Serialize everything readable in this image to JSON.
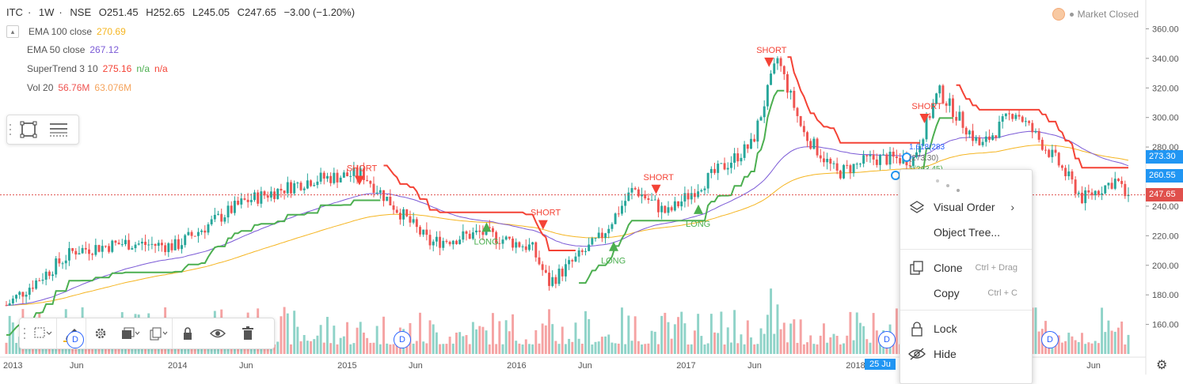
{
  "header": {
    "symbol": "ITC",
    "interval": "1W",
    "exchange": "NSE",
    "open": "O251.45",
    "high": "H252.65",
    "low": "L245.05",
    "close": "C247.65",
    "change": "−3.00 (−1.20%)"
  },
  "market_status": "Market Closed",
  "legend": {
    "ema100": {
      "label": "EMA 100 close",
      "value": "270.69",
      "color": "#f5b521"
    },
    "ema50": {
      "label": "EMA 50 close",
      "value": "267.12",
      "color": "#7b5ad6"
    },
    "supertrend": {
      "label": "SuperTrend 3 10",
      "value": "275.16",
      "v2": "n/a",
      "v3": "n/a"
    },
    "vol": {
      "label": "Vol 20",
      "value": "56.76M",
      "value2": "63.076M"
    }
  },
  "price_tags": {
    "tag1": {
      "text": "273.30",
      "color": "#2196f3"
    },
    "tag2": {
      "text": "260.55",
      "color": "#2196f3"
    },
    "tag3": {
      "text": "247.65",
      "color": "#e0504c"
    }
  },
  "context_menu": {
    "visual_order": "Visual Order",
    "object_tree": "Object Tree...",
    "clone": "Clone",
    "clone_shortcut": "Ctrl + Drag",
    "copy": "Copy",
    "copy_shortcut": "Ctrl + C",
    "lock": "Lock",
    "hide": "Hide"
  },
  "date_tag": "25 Ju",
  "fib_labels": [
    "1.618(283",
    "(273.30)",
    "1(263.45)"
  ],
  "colors": {
    "up": "#26a69a",
    "down": "#ef5350",
    "supertrend_up": "#4caf50",
    "supertrend_down": "#f44336",
    "vol_up": "#8fd3c8",
    "vol_down": "#f5a3a3"
  },
  "chart_data": {
    "type": "candlestick",
    "y_axis": {
      "ticks": [
        160,
        180,
        200,
        220,
        240,
        260,
        280,
        300,
        320,
        340,
        360
      ],
      "range": [
        140,
        372
      ]
    },
    "x_axis": {
      "labels": [
        "2013",
        "Jun",
        "2014",
        "Jun",
        "2015",
        "Jun",
        "2016",
        "Jun",
        "2017",
        "Jun",
        "2018",
        "Jun",
        "Jun"
      ]
    },
    "signals": [
      {
        "text": "SHORT",
        "date": "2015-02",
        "price": 268
      },
      {
        "text": "LONG",
        "date": "2015-11",
        "price": 228
      },
      {
        "text": "SHORT",
        "date": "2016-03",
        "price": 238
      },
      {
        "text": "LONG",
        "date": "2016-08",
        "price": 215
      },
      {
        "text": "SHORT",
        "date": "2016-11",
        "price": 262
      },
      {
        "text": "LONG",
        "date": "2017-02",
        "price": 240
      },
      {
        "text": "SHORT",
        "date": "2017-07",
        "price": 348
      },
      {
        "text": "SHORT",
        "date": "2018-06",
        "price": 310
      }
    ],
    "close_key_points": [
      [
        2013.0,
        173
      ],
      [
        2013.4,
        210
      ],
      [
        2013.7,
        215
      ],
      [
        2014.0,
        213
      ],
      [
        2014.4,
        243
      ],
      [
        2014.8,
        258
      ],
      [
        2015.1,
        262
      ],
      [
        2015.5,
        215
      ],
      [
        2015.8,
        222
      ],
      [
        2016.1,
        212
      ],
      [
        2016.2,
        188
      ],
      [
        2016.5,
        218
      ],
      [
        2016.7,
        252
      ],
      [
        2016.9,
        235
      ],
      [
        2017.1,
        255
      ],
      [
        2017.4,
        282
      ],
      [
        2017.55,
        340
      ],
      [
        2017.7,
        290
      ],
      [
        2017.9,
        262
      ],
      [
        2018.1,
        272
      ],
      [
        2018.35,
        272
      ],
      [
        2018.5,
        318
      ],
      [
        2018.75,
        280
      ],
      [
        2018.95,
        305
      ],
      [
        2019.2,
        270
      ],
      [
        2019.35,
        245
      ],
      [
        2019.55,
        258
      ],
      [
        2019.6,
        247.65
      ]
    ],
    "current_price": 247.65
  }
}
